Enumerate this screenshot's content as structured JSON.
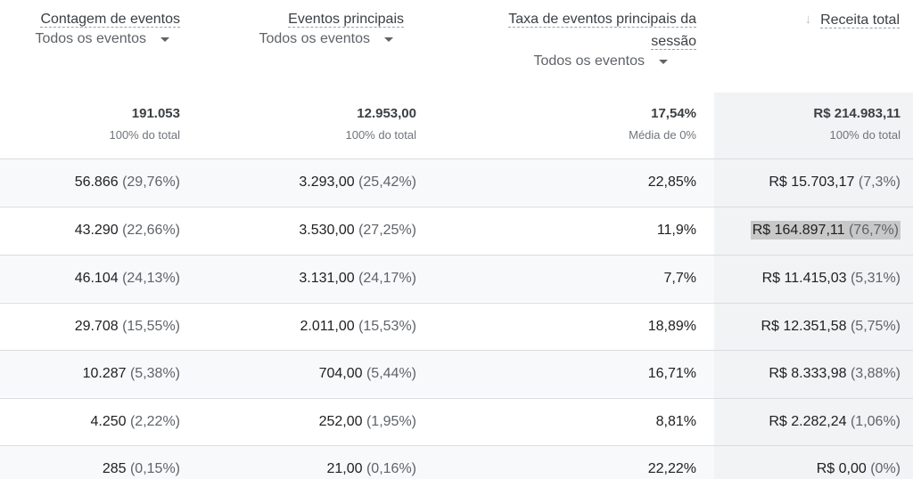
{
  "headers": {
    "event_count": {
      "title": "Contagem de eventos",
      "filter": "Todos os eventos"
    },
    "key_events": {
      "title": "Eventos principais",
      "filter": "Todos os eventos"
    },
    "session_key_event_rate": {
      "title_line1": "Taxa de eventos principais da",
      "title_line2": "sessão",
      "filter": "Todos os eventos"
    },
    "total_revenue": {
      "title": "Receita total",
      "sort_icon": "arrow-down-icon"
    }
  },
  "totals": {
    "event_count": {
      "value": "191.053",
      "sub": "100% do total"
    },
    "key_events": {
      "value": "12.953,00",
      "sub": "100% do total"
    },
    "session_key_event_rate": {
      "value": "17,54%",
      "sub": "Média de 0%"
    },
    "total_revenue": {
      "value": "R$ 214.983,11",
      "sub": "100% do total"
    }
  },
  "rows": [
    {
      "event_count": "56.866",
      "event_count_pct": "(29,76%)",
      "key_events": "3.293,00",
      "key_events_pct": "(25,42%)",
      "rate": "22,85%",
      "revenue": "R$ 15.703,17",
      "revenue_pct": "(7,3%)"
    },
    {
      "event_count": "43.290",
      "event_count_pct": "(22,66%)",
      "key_events": "3.530,00",
      "key_events_pct": "(27,25%)",
      "rate": "11,9%",
      "revenue": "R$ 164.897,11",
      "revenue_pct": "(76,7%)"
    },
    {
      "event_count": "46.104",
      "event_count_pct": "(24,13%)",
      "key_events": "3.131,00",
      "key_events_pct": "(24,17%)",
      "rate": "7,7%",
      "revenue": "R$ 11.415,03",
      "revenue_pct": "(5,31%)"
    },
    {
      "event_count": "29.708",
      "event_count_pct": "(15,55%)",
      "key_events": "2.011,00",
      "key_events_pct": "(15,53%)",
      "rate": "18,89%",
      "revenue": "R$ 12.351,58",
      "revenue_pct": "(5,75%)"
    },
    {
      "event_count": "10.287",
      "event_count_pct": "(5,38%)",
      "key_events": "704,00",
      "key_events_pct": "(5,44%)",
      "rate": "16,71%",
      "revenue": "R$ 8.333,98",
      "revenue_pct": "(3,88%)"
    },
    {
      "event_count": "4.250",
      "event_count_pct": "(2,22%)",
      "key_events": "252,00",
      "key_events_pct": "(1,95%)",
      "rate": "8,81%",
      "revenue": "R$ 2.282,24",
      "revenue_pct": "(1,06%)"
    },
    {
      "event_count": "285",
      "event_count_pct": "(0,15%)",
      "key_events": "21,00",
      "key_events_pct": "(0,16%)",
      "rate": "22,22%",
      "revenue": "R$ 0,00",
      "revenue_pct": "(0%)"
    }
  ],
  "colors": {
    "revenue_column_bg": "#f1f3f4",
    "alt_row_bg": "#f8f9fa",
    "highlight_bg": "#c8c8c8"
  }
}
